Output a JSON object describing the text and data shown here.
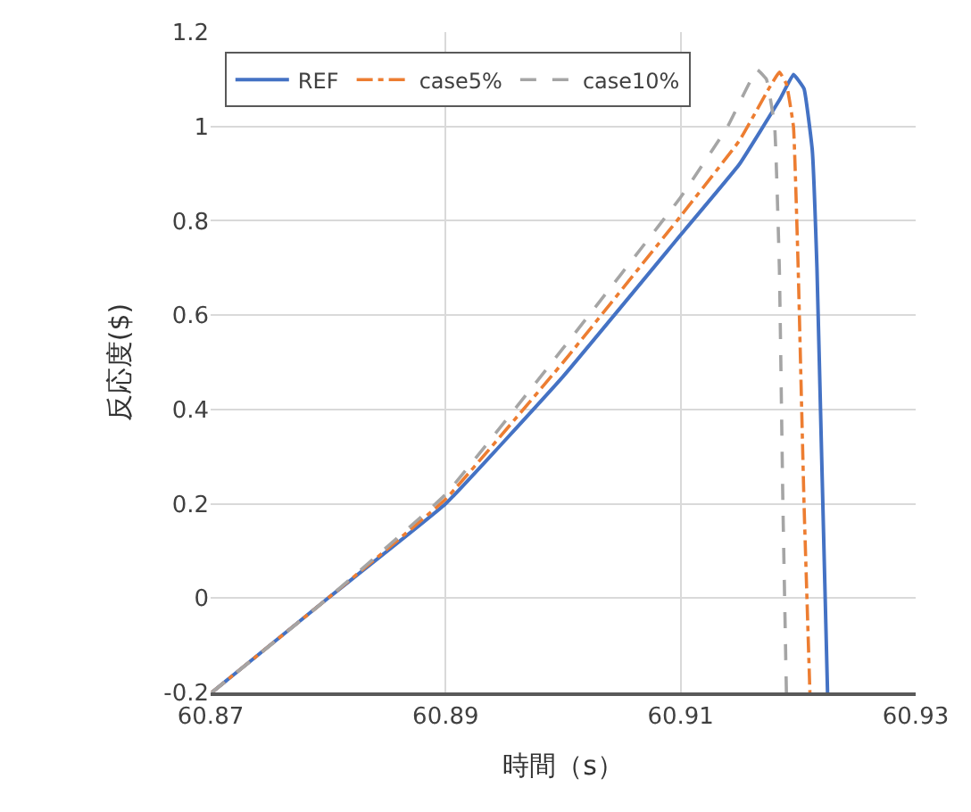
{
  "chart_data": {
    "type": "line",
    "xlabel": "時間（s）",
    "ylabel": "反応度($)",
    "xlim": [
      60.87,
      60.93
    ],
    "xticks": [
      60.87,
      60.89,
      60.91,
      60.93
    ],
    "ylim": [
      -0.2,
      1.2
    ],
    "yticks": [
      -0.2,
      0,
      0.2,
      0.4,
      0.6,
      0.8,
      1,
      1.2
    ],
    "grid": true,
    "legend": "top",
    "marker": "none",
    "series": [
      {
        "name": "REF",
        "color": "#4472c4",
        "line_style": "solid",
        "x": [
          60.8701,
          60.88,
          60.89,
          60.9,
          60.91,
          60.915,
          60.9185,
          60.9196,
          60.9205,
          60.9212,
          60.9216,
          60.922,
          60.9225
        ],
        "values": [
          -0.2,
          0.0,
          0.2,
          0.47,
          0.77,
          0.92,
          1.06,
          1.11,
          1.08,
          0.95,
          0.7,
          0.3,
          -0.2
        ]
      },
      {
        "name": "case5%",
        "color": "#ed7d31",
        "line_style": "dashdot",
        "x": [
          60.8701,
          60.88,
          60.89,
          60.9,
          60.91,
          60.915,
          60.9175,
          60.9184,
          60.919,
          60.9196,
          60.92,
          60.9205,
          60.921
        ],
        "values": [
          -0.2,
          0.0,
          0.21,
          0.5,
          0.81,
          0.97,
          1.08,
          1.115,
          1.09,
          1.0,
          0.7,
          0.2,
          -0.2
        ]
      },
      {
        "name": "case10%",
        "color": "#a5a5a5",
        "line_style": "dashed",
        "x": [
          60.8701,
          60.88,
          60.89,
          60.9,
          60.91,
          60.914,
          60.9165,
          60.9173,
          60.918,
          60.9184,
          60.9187,
          60.919
        ],
        "values": [
          -0.2,
          0.0,
          0.22,
          0.53,
          0.85,
          1.0,
          1.12,
          1.1,
          1.0,
          0.7,
          0.2,
          -0.2
        ]
      }
    ]
  }
}
